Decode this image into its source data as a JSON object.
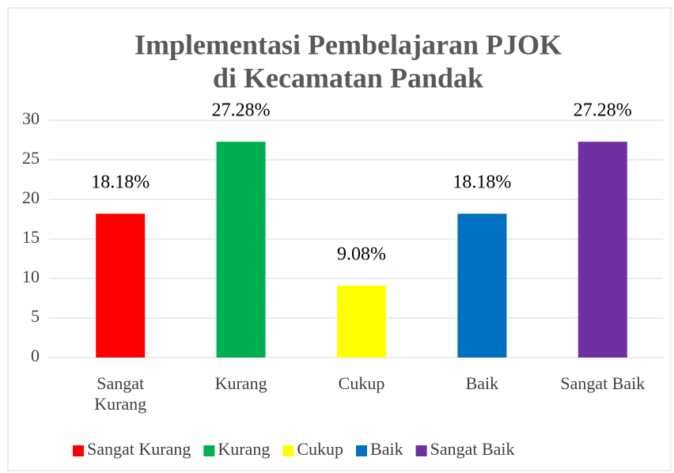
{
  "chart_data": {
    "type": "bar",
    "title": [
      "Implementasi Pembelajaran PJOK",
      "di Kecamatan Pandak"
    ],
    "categories": [
      "Sangat Kurang",
      "Kurang",
      "Cukup",
      "Baik",
      "Sangat Baik"
    ],
    "values": [
      18.18,
      27.28,
      9.08,
      18.18,
      27.28
    ],
    "value_labels": [
      "18.18%",
      "27.28%",
      "9.08%",
      "18.18%",
      "27.28%"
    ],
    "colors": [
      "#ff0000",
      "#00b050",
      "#ffff00",
      "#0070c0",
      "#7030a0"
    ],
    "ylim": [
      0,
      30
    ],
    "yticks": [
      0,
      5,
      10,
      15,
      20,
      25,
      30
    ],
    "grid": true,
    "legend": "bottom"
  }
}
